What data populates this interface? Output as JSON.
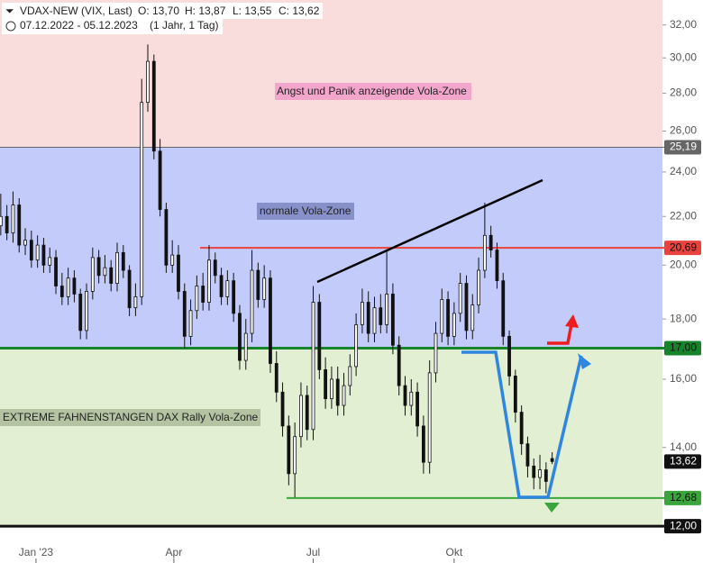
{
  "chart_data": {
    "type": "candlestick",
    "header": {
      "symbol": "VDAX-NEW (VIX, Last)",
      "open": "O: 13,70",
      "high": "H: 13,87",
      "low": "L: 13,55",
      "close": "C: 13,62",
      "range": "07.12.2022 - 05.12.2023",
      "period": "(1 Jahr, 1 Tag)"
    },
    "annotations": [
      "Angst und Panik anzeigende Vola-Zone",
      "normale Vola-Zone",
      "EXTREME FAHNENSTANGEN DAX Rally Vola-Zone"
    ],
    "log_scale": true,
    "ylim": [
      11.67,
      33.6
    ],
    "yticks": [
      {
        "value": 14,
        "label": "14,00"
      },
      {
        "value": 16,
        "label": "16,00"
      },
      {
        "value": 18,
        "label": "18,00"
      },
      {
        "value": 20,
        "label": "20,00"
      },
      {
        "value": 22,
        "label": "22,00"
      },
      {
        "value": 24,
        "label": "24,00"
      },
      {
        "value": 26,
        "label": "26,00"
      },
      {
        "value": 28,
        "label": "28,00"
      },
      {
        "value": 30,
        "label": "30,00"
      },
      {
        "value": 32,
        "label": "32,00"
      }
    ],
    "xlim": [
      1.5,
      434
    ],
    "xticks": [
      {
        "value": 25,
        "label": "Jan '23"
      },
      {
        "value": 115,
        "label": "Apr"
      },
      {
        "value": 206,
        "label": "Jul"
      },
      {
        "value": 298,
        "label": "Okt"
      }
    ],
    "levels": [
      {
        "value": 25.19,
        "label": "25,19",
        "color": "#666666"
      },
      {
        "value": 20.69,
        "label": "20,69",
        "color": "#e8433f"
      },
      {
        "value": 17.0,
        "label": "17,00",
        "color": "#17832a"
      },
      {
        "value": 12.68,
        "label": "12,68",
        "color": "#3aa53a"
      },
      {
        "value": 12.0,
        "label": "12,00",
        "color": "#111111"
      }
    ],
    "last": {
      "value": 13.62,
      "label": "13,62"
    },
    "zone_colors": [
      "#f9dcdc",
      "#c3cbfb",
      "#e3efd3"
    ],
    "candle_color": "#111111",
    "x": [
      2,
      6,
      10,
      14,
      18,
      22,
      26,
      30,
      34,
      38,
      42,
      46,
      50,
      54,
      58,
      62,
      66,
      70,
      74,
      78,
      82,
      86,
      90,
      94,
      98,
      102,
      106,
      110,
      114,
      118,
      122,
      126,
      130,
      134,
      138,
      142,
      146,
      150,
      154,
      158,
      162,
      166,
      170,
      174,
      178,
      182,
      186,
      190,
      194,
      198,
      202,
      206,
      210,
      214,
      218,
      222,
      226,
      230,
      234,
      238,
      242,
      246,
      250,
      254,
      258,
      262,
      266,
      270,
      274,
      278,
      282,
      286,
      290,
      294,
      298,
      302,
      306,
      310,
      314,
      318,
      322,
      326,
      330,
      334,
      338,
      342,
      346,
      350,
      354,
      358,
      362
    ],
    "open": [
      21.6,
      22.0,
      21.3,
      22.5,
      20.8,
      21.0,
      20.2,
      20.8,
      20.0,
      20.3,
      19.2,
      18.8,
      19.5,
      18.9,
      17.6,
      19.0,
      20.3,
      19.6,
      19.9,
      19.3,
      20.5,
      19.8,
      18.4,
      18.8,
      27.5,
      29.8,
      25.0,
      22.3,
      20.0,
      20.4,
      19.0,
      17.4,
      18.3,
      19.2,
      18.6,
      20.2,
      19.6,
      18.8,
      19.4,
      18.2,
      16.6,
      17.5,
      19.8,
      18.7,
      19.5,
      16.5,
      15.6,
      14.6,
      13.3,
      14.3,
      15.5,
      14.5,
      18.6,
      16.3,
      15.4,
      16.0,
      15.2,
      15.8,
      16.4,
      17.8,
      18.6,
      17.5,
      18.4,
      17.8,
      18.9,
      17.1,
      15.8,
      15.2,
      15.6,
      14.6,
      13.6,
      16.2,
      17.5,
      18.7,
      17.4,
      18.2,
      19.3,
      17.6,
      18.5,
      19.8,
      21.2,
      20.6,
      19.4,
      17.4,
      16.1,
      15.0,
      14.1,
      13.5,
      13.2,
      13.4,
      13.7
    ],
    "high": [
      23.0,
      22.5,
      23.1,
      22.8,
      21.5,
      21.4,
      21.2,
      21.1,
      20.7,
      20.6,
      19.7,
      19.9,
      19.8,
      19.1,
      19.3,
      20.7,
      20.6,
      20.4,
      20.2,
      20.9,
      20.8,
      20.0,
      19.3,
      28.8,
      30.8,
      30.2,
      25.6,
      22.6,
      21.0,
      20.8,
      19.3,
      18.7,
      19.6,
      19.7,
      20.8,
      20.5,
      19.9,
      19.8,
      19.7,
      18.5,
      18.0,
      20.6,
      20.1,
      20.0,
      19.8,
      16.9,
      15.9,
      14.9,
      14.7,
      15.9,
      15.8,
      19.2,
      18.9,
      16.7,
      16.4,
      16.4,
      16.2,
      16.8,
      18.2,
      19.1,
      19.0,
      18.8,
      18.9,
      20.6,
      19.3,
      17.4,
      16.1,
      16.0,
      15.9,
      14.9,
      16.6,
      17.9,
      19.1,
      19.0,
      18.6,
      19.7,
      19.6,
      18.9,
      20.3,
      22.6,
      21.6,
      20.9,
      19.7,
      17.6,
      16.3,
      15.2,
      14.3,
      13.7,
      13.8,
      13.6,
      13.87
    ],
    "low": [
      21.2,
      21.0,
      20.9,
      20.5,
      20.4,
      19.9,
      19.9,
      19.7,
      19.7,
      18.9,
      18.5,
      18.5,
      18.6,
      17.3,
      17.3,
      18.7,
      19.3,
      19.3,
      19.0,
      19.0,
      19.5,
      18.1,
      18.1,
      18.5,
      27.0,
      24.6,
      22.0,
      19.7,
      19.7,
      18.7,
      17.0,
      17.1,
      18.0,
      18.3,
      18.3,
      19.3,
      18.5,
      18.5,
      17.9,
      16.3,
      16.3,
      17.2,
      18.4,
      18.4,
      16.2,
      15.3,
      14.3,
      13.0,
      12.7,
      14.0,
      14.2,
      14.2,
      16.0,
      15.1,
      15.1,
      14.9,
      14.9,
      15.5,
      16.1,
      17.5,
      17.2,
      17.2,
      17.5,
      17.5,
      16.8,
      15.5,
      14.9,
      14.9,
      14.3,
      13.3,
      13.3,
      15.9,
      17.2,
      17.1,
      17.1,
      17.9,
      17.3,
      17.3,
      18.2,
      19.5,
      20.3,
      19.1,
      17.1,
      15.8,
      14.7,
      13.8,
      13.2,
      12.9,
      12.9,
      12.8,
      13.55
    ],
    "close": [
      22.0,
      21.3,
      22.5,
      20.8,
      21.0,
      20.2,
      20.8,
      20.0,
      20.3,
      19.2,
      18.8,
      19.5,
      18.9,
      17.6,
      19.0,
      20.3,
      19.6,
      19.9,
      19.3,
      20.5,
      19.8,
      18.4,
      18.8,
      27.5,
      29.8,
      25.0,
      22.3,
      20.0,
      20.4,
      19.0,
      17.4,
      18.3,
      19.2,
      18.6,
      20.2,
      19.6,
      18.8,
      19.4,
      18.2,
      16.6,
      17.5,
      19.8,
      18.7,
      19.5,
      16.5,
      15.6,
      14.6,
      13.3,
      14.3,
      15.5,
      14.5,
      18.6,
      16.3,
      15.4,
      16.0,
      15.2,
      15.8,
      16.4,
      17.8,
      18.6,
      17.5,
      18.4,
      17.8,
      18.9,
      17.1,
      15.8,
      15.2,
      15.6,
      14.6,
      13.6,
      16.2,
      17.5,
      18.7,
      17.4,
      18.2,
      19.3,
      17.6,
      18.5,
      19.8,
      21.2,
      20.6,
      19.4,
      17.4,
      16.1,
      15.0,
      14.1,
      13.5,
      13.2,
      13.4,
      13.1,
      13.62
    ]
  }
}
